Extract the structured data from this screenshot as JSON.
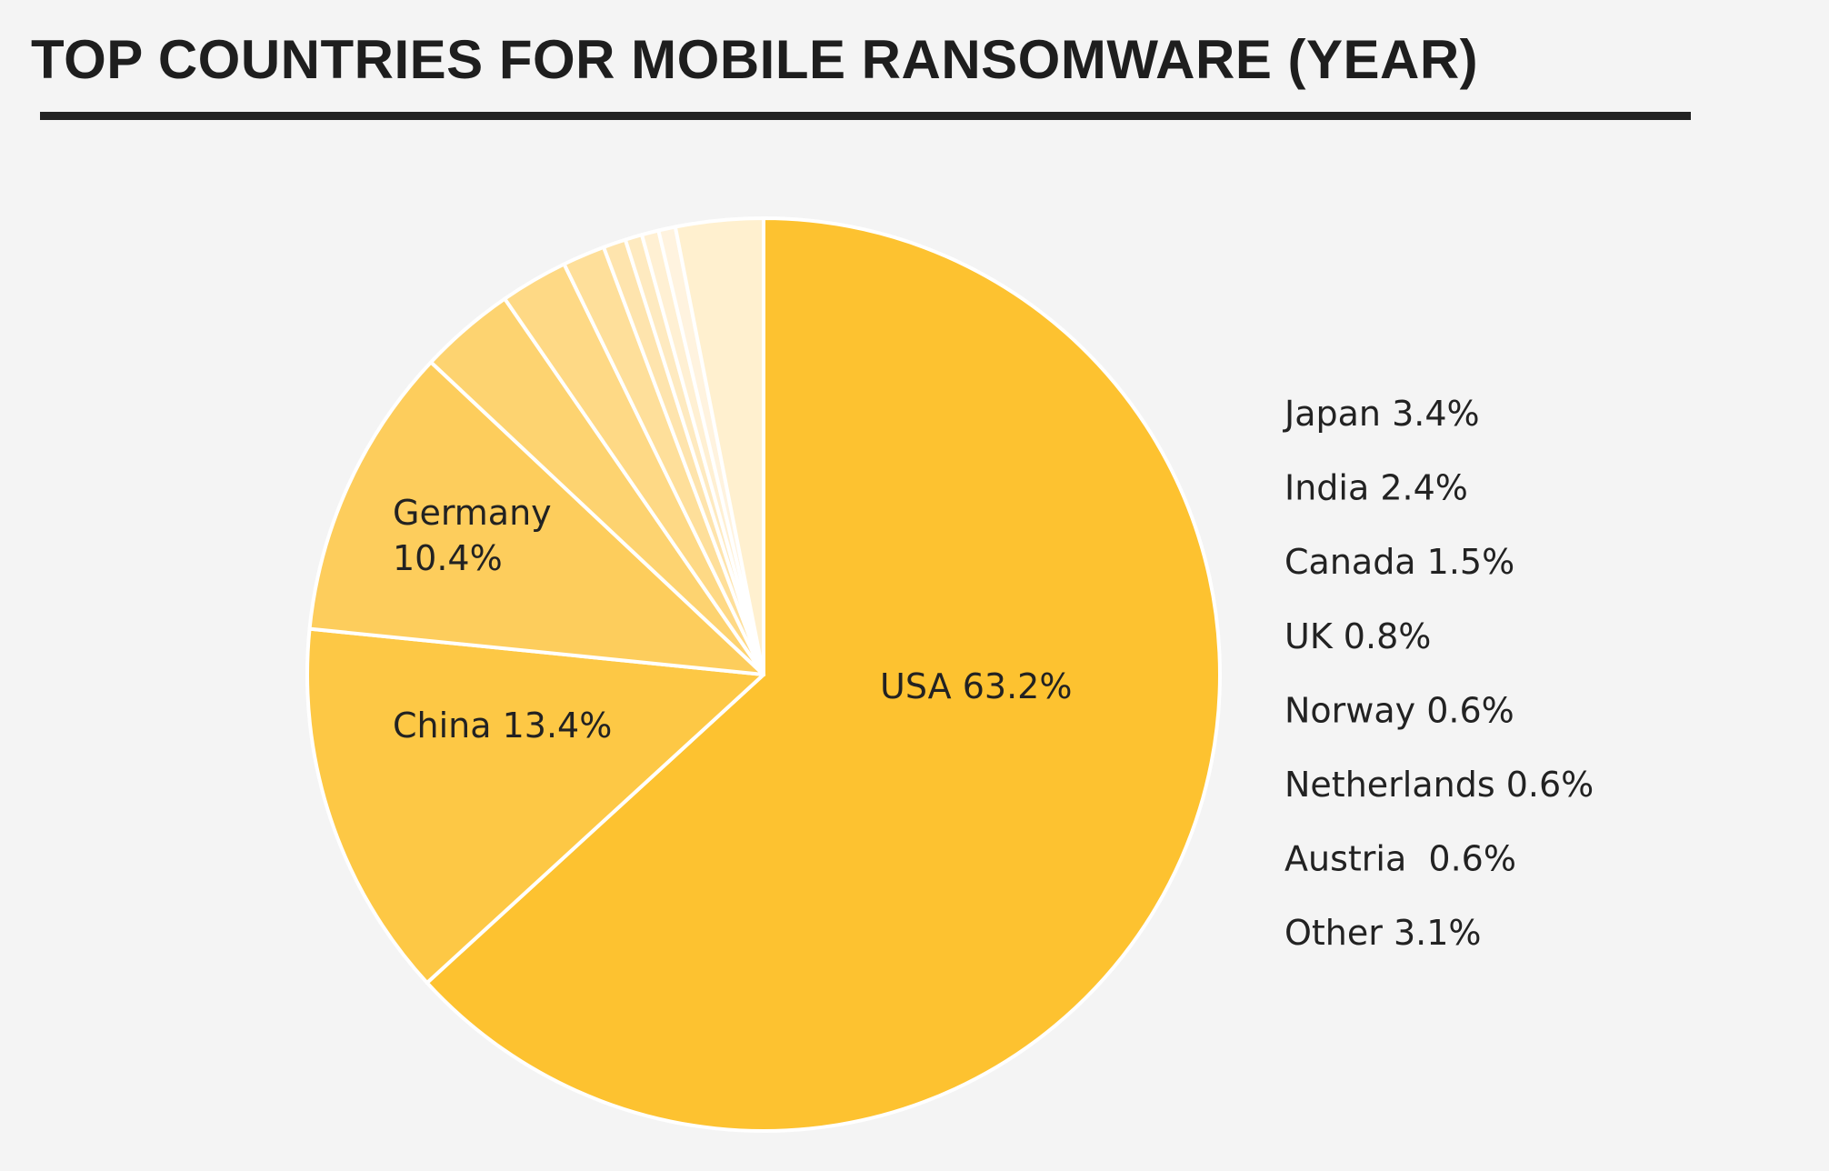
{
  "title": "TOP COUNTRIES FOR MOBILE RANSOMWARE (YEAR)",
  "chart_data": {
    "type": "pie",
    "title": "TOP COUNTRIES FOR MOBILE RANSOMWARE (YEAR)",
    "start": "12 o'clock",
    "direction": "clockwise",
    "slices": [
      {
        "name": "USA",
        "value": 63.2,
        "label": "USA 63.2%",
        "color": "#fdc230",
        "inside_label": true
      },
      {
        "name": "China",
        "value": 13.4,
        "label": "China 13.4%",
        "color": "#fdc845",
        "inside_label": true
      },
      {
        "name": "Germany",
        "value": 10.4,
        "label_lines": [
          "Germany",
          "10.4%"
        ],
        "color": "#fdcd5c",
        "inside_label": true
      },
      {
        "name": "Japan",
        "value": 3.4,
        "label": "Japan 3.4%",
        "color": "#fdd370",
        "inside_label": false
      },
      {
        "name": "India",
        "value": 2.4,
        "label": "India 2.4%",
        "color": "#fed985",
        "inside_label": false
      },
      {
        "name": "Canada",
        "value": 1.5,
        "label": "Canada 1.5%",
        "color": "#fedf9a",
        "inside_label": false
      },
      {
        "name": "UK",
        "value": 0.8,
        "label": "UK 0.8%",
        "color": "#fee4ad",
        "inside_label": false
      },
      {
        "name": "Norway",
        "value": 0.6,
        "label": "Norway 0.6%",
        "color": "#feeac0",
        "inside_label": false
      },
      {
        "name": "Netherlands",
        "value": 0.6,
        "label": "Netherlands 0.6%",
        "color": "#fff0d3",
        "inside_label": false
      },
      {
        "name": "Austria",
        "value": 0.6,
        "label": "Austria  0.6%",
        "color": "#fff3df",
        "inside_label": false
      },
      {
        "name": "Other",
        "value": 3.1,
        "label": "Other 3.1%",
        "color": "#fff0cf",
        "inside_label": false
      }
    ]
  }
}
